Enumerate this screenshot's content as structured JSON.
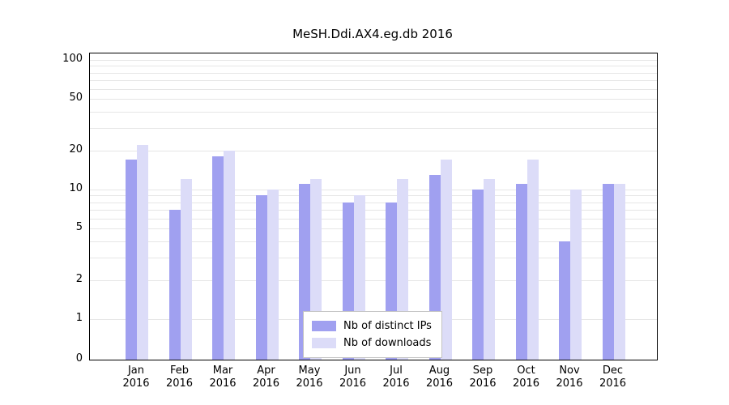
{
  "chart_data": {
    "type": "bar",
    "title": "MeSH.Ddi.AX4.eg.db 2016",
    "year": "2016",
    "categories": [
      "Jan",
      "Feb",
      "Mar",
      "Apr",
      "May",
      "Jun",
      "Jul",
      "Aug",
      "Sep",
      "Oct",
      "Nov",
      "Dec"
    ],
    "series": [
      {
        "name": "Nb of distinct IPs",
        "color": "#a0a0f0",
        "values": [
          17,
          7,
          18,
          9,
          11,
          8,
          8,
          13,
          10,
          11,
          4,
          11
        ]
      },
      {
        "name": "Nb of downloads",
        "color": "#dcdcf8",
        "values": [
          22,
          12,
          20,
          10,
          12,
          9,
          12,
          17,
          12,
          17,
          10,
          11
        ]
      }
    ],
    "ylabel": "",
    "xlabel": "",
    "yscale": "log-with-zero-baseline",
    "yticks": [
      100,
      50,
      20,
      10,
      5,
      2,
      1,
      0
    ],
    "gridlines": [
      1,
      2,
      3,
      4,
      5,
      6,
      7,
      8,
      9,
      10,
      20,
      30,
      40,
      50,
      60,
      70,
      80,
      90,
      100
    ],
    "ylim": [
      0,
      100
    ],
    "grid": true,
    "legend_position": "bottom-center-inside"
  },
  "colors": {
    "grid": "#e6e6e6",
    "axis": "#000000",
    "legend_border": "#c3c3c3",
    "background": "#ffffff"
  }
}
